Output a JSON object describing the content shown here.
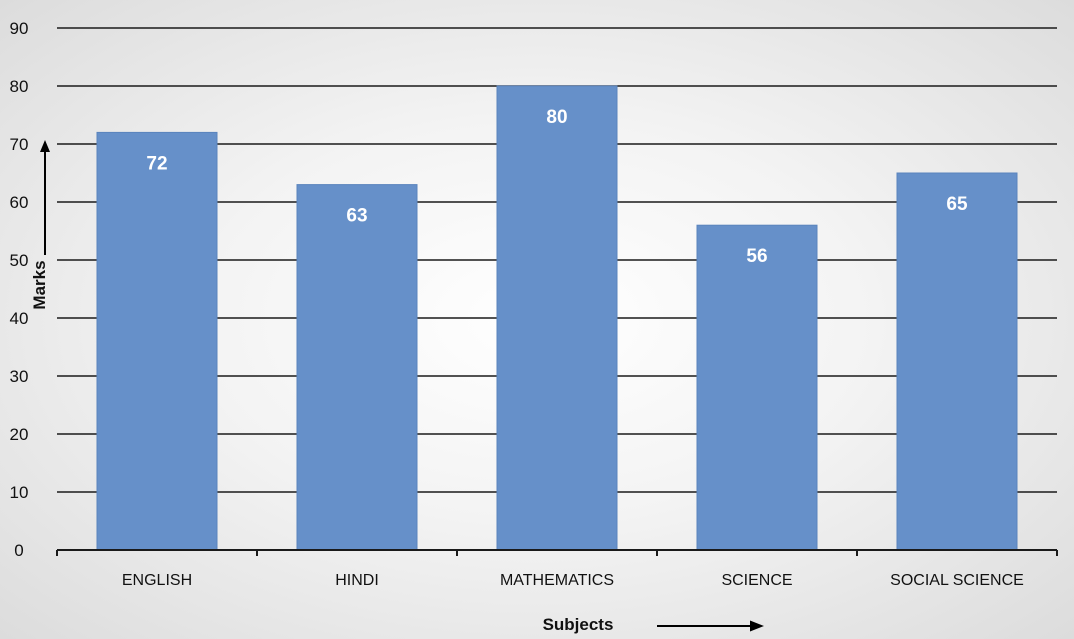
{
  "chart_data": {
    "type": "bar",
    "categories": [
      "ENGLISH",
      "HINDI",
      "MATHEMATICS",
      "SCIENCE",
      "SOCIAL SCIENCE"
    ],
    "values": [
      72,
      63,
      80,
      56,
      65
    ],
    "data_labels": [
      "72",
      "63",
      "80",
      "56",
      "65"
    ],
    "xlabel": "Subjects",
    "ylabel": "Marks",
    "ylim": [
      0,
      90
    ],
    "yticks": [
      0,
      10,
      20,
      30,
      40,
      50,
      60,
      70,
      80,
      90
    ],
    "grid": true,
    "legend": "none",
    "bar_color": "#6690c9",
    "bar_edge_color": "#5a84bd"
  }
}
